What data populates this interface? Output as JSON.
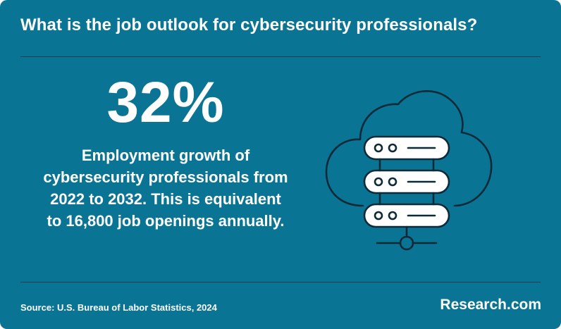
{
  "header": {
    "title": "What is the job outlook for cybersecurity professionals?"
  },
  "stat": {
    "value": "32%",
    "description": "Employment growth of cybersecurity professionals from 2022 to 2032. This is equivalent to 16,800 job openings annually."
  },
  "illustration": {
    "icon": "cloud-server-icon"
  },
  "footer": {
    "source": "Source: U.S. Bureau of Labor Statistics, 2024",
    "brand": "Research.com"
  },
  "colors": {
    "background": "#0a7494",
    "divider": "#0a3e52",
    "text": "#ffffff",
    "icon_stroke": "#0d2a38",
    "icon_fill": "#ffffff"
  }
}
